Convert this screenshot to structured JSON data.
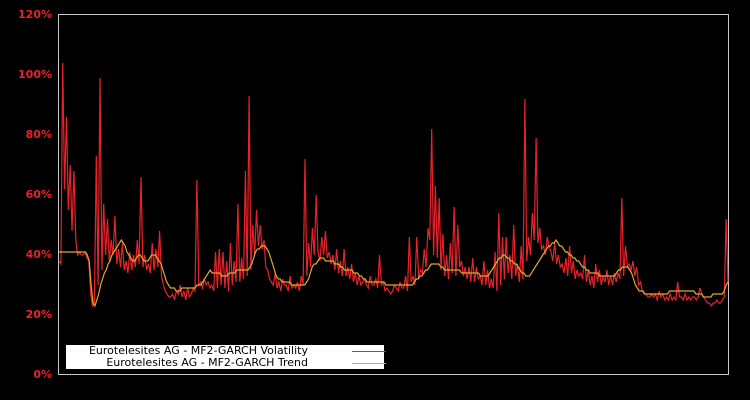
{
  "chart_data": {
    "type": "line",
    "title": "",
    "xlabel": "",
    "ylabel": "",
    "ylim": [
      0,
      120
    ],
    "y_ticks": [
      "0%",
      "20%",
      "40%",
      "60%",
      "80%",
      "100%",
      "120%"
    ],
    "y_tick_values": [
      0,
      20,
      40,
      60,
      80,
      100,
      120
    ],
    "grid": false,
    "legend_position": "lower left",
    "background": "#000000",
    "frame_color": "#c8c8c8",
    "series": [
      {
        "name": "Eurotelesites AG - MF2-GARCH Volatility",
        "color": "#e8222b",
        "values": [
          38,
          37,
          104,
          62,
          86,
          55,
          70,
          48,
          68,
          45,
          40,
          41,
          40,
          40,
          41,
          39,
          38,
          27,
          23,
          24,
          73,
          30,
          99,
          35,
          57,
          40,
          52,
          38,
          45,
          40,
          53,
          37,
          42,
          36,
          44,
          35,
          38,
          34,
          41,
          35,
          40,
          36,
          45,
          37,
          66,
          36,
          40,
          35,
          37,
          34,
          44,
          35,
          42,
          36,
          48,
          33,
          30,
          28,
          27,
          26,
          26,
          27,
          25,
          28,
          27,
          30,
          26,
          28,
          25,
          29,
          26,
          27,
          29,
          28,
          65,
          30,
          31,
          29,
          32,
          30,
          31,
          29,
          30,
          28,
          41,
          29,
          42,
          30,
          41,
          29,
          38,
          28,
          44,
          30,
          38,
          31,
          57,
          31,
          39,
          32,
          68,
          33,
          93,
          35,
          50,
          40,
          55,
          43,
          50,
          42,
          45,
          36,
          35,
          32,
          31,
          30,
          34,
          29,
          31,
          28,
          32,
          30,
          30,
          28,
          33,
          29,
          30,
          29,
          31,
          28,
          33,
          30,
          72,
          33,
          44,
          36,
          49,
          40,
          60,
          41,
          38,
          46,
          40,
          48,
          39,
          41,
          37,
          40,
          35,
          42,
          34,
          38,
          33,
          42,
          33,
          36,
          32,
          37,
          31,
          34,
          30,
          33,
          30,
          31,
          32,
          30,
          29,
          33,
          30,
          30,
          32,
          29,
          40,
          30,
          31,
          28,
          29,
          28,
          27,
          28,
          30,
          29,
          28,
          31,
          29,
          29,
          33,
          28,
          46,
          31,
          33,
          30,
          46,
          32,
          35,
          34,
          42,
          36,
          49,
          45,
          82,
          40,
          63,
          39,
          59,
          35,
          47,
          33,
          40,
          32,
          44,
          34,
          56,
          33,
          50,
          36,
          38,
          33,
          36,
          32,
          36,
          31,
          39,
          31,
          36,
          32,
          33,
          30,
          38,
          30,
          35,
          29,
          32,
          29,
          41,
          28,
          54,
          30,
          46,
          32,
          46,
          34,
          40,
          32,
          50,
          33,
          37,
          31,
          43,
          32,
          92,
          38,
          46,
          40,
          54,
          45,
          79,
          44,
          49,
          42,
          43,
          40,
          46,
          43,
          41,
          38,
          44,
          37,
          40,
          36,
          37,
          34,
          39,
          33,
          43,
          34,
          38,
          32,
          35,
          33,
          34,
          32,
          40,
          31,
          35,
          30,
          33,
          29,
          37,
          31,
          35,
          30,
          33,
          31,
          35,
          30,
          33,
          30,
          34,
          31,
          34,
          32,
          59,
          33,
          43,
          36,
          37,
          35,
          38,
          33,
          36,
          30,
          31,
          28,
          27,
          27,
          26,
          26,
          27,
          26,
          27,
          25,
          28,
          26,
          27,
          25,
          26,
          25,
          27,
          25,
          26,
          25,
          31,
          26,
          26,
          25,
          27,
          25,
          26,
          25,
          26,
          26,
          25,
          26,
          29,
          27,
          26,
          25,
          24,
          24,
          23,
          24,
          24,
          25,
          24,
          24,
          25,
          26,
          52,
          31
        ]
      },
      {
        "name": "Eurotelesites AG - MF2-GARCH Trend",
        "color": "#e0a830",
        "values": [
          41,
          41,
          41,
          41,
          41,
          41,
          41,
          41,
          41,
          41,
          41,
          41,
          41,
          41,
          41,
          40,
          38,
          30,
          24,
          23,
          25,
          27,
          30,
          32,
          34,
          35,
          37,
          38,
          40,
          41,
          42,
          43,
          44,
          45,
          44,
          43,
          41,
          40,
          39,
          38,
          38,
          39,
          40,
          40,
          39,
          38,
          38,
          38,
          39,
          40,
          40,
          40,
          39,
          38,
          37,
          35,
          33,
          31,
          30,
          29,
          29,
          29,
          28,
          28,
          28,
          29,
          29,
          29,
          29,
          29,
          29,
          29,
          29,
          30,
          30,
          30,
          31,
          32,
          33,
          34,
          35,
          34,
          34,
          34,
          34,
          34,
          33,
          33,
          33,
          33,
          34,
          34,
          34,
          34,
          35,
          35,
          35,
          35,
          35,
          35,
          35,
          36,
          37,
          39,
          41,
          42,
          42,
          43,
          43,
          43,
          42,
          41,
          39,
          37,
          35,
          33,
          32,
          32,
          31,
          31,
          31,
          31,
          31,
          30,
          30,
          30,
          30,
          30,
          30,
          30,
          30,
          31,
          32,
          34,
          36,
          37,
          37,
          38,
          39,
          39,
          39,
          38,
          38,
          38,
          38,
          38,
          37,
          37,
          37,
          36,
          36,
          35,
          35,
          35,
          35,
          35,
          34,
          34,
          34,
          33,
          33,
          32,
          32,
          31,
          31,
          31,
          31,
          31,
          31,
          31,
          31,
          31,
          31,
          30,
          30,
          30,
          30,
          30,
          30,
          30,
          30,
          30,
          30,
          30,
          30,
          30,
          30,
          30,
          31,
          32,
          32,
          33,
          33,
          34,
          35,
          35,
          36,
          37,
          37,
          37,
          37,
          37,
          36,
          36,
          35,
          35,
          35,
          35,
          35,
          35,
          35,
          35,
          35,
          34,
          34,
          34,
          34,
          34,
          34,
          34,
          34,
          34,
          34,
          33,
          33,
          33,
          33,
          33,
          34,
          35,
          36,
          37,
          38,
          39,
          39,
          40,
          40,
          39,
          39,
          38,
          38,
          37,
          37,
          36,
          35,
          34,
          34,
          33,
          33,
          33,
          34,
          35,
          36,
          37,
          38,
          39,
          40,
          41,
          42,
          43,
          43,
          44,
          44,
          45,
          44,
          43,
          43,
          42,
          41,
          41,
          40,
          40,
          39,
          39,
          38,
          38,
          37,
          36,
          36,
          35,
          35,
          34,
          34,
          34,
          34,
          34,
          33,
          33,
          33,
          33,
          33,
          33,
          33,
          33,
          33,
          34,
          35,
          35,
          36,
          36,
          36,
          36,
          35,
          34,
          32,
          30,
          29,
          28,
          28,
          28,
          27,
          27,
          27,
          27,
          27,
          27,
          27,
          27,
          27,
          27,
          27,
          27,
          27,
          28,
          28,
          28,
          28,
          28,
          28,
          28,
          28,
          28,
          28,
          28,
          28,
          28,
          28,
          27,
          27,
          27,
          27,
          26,
          26,
          26,
          26,
          26,
          27,
          27,
          27,
          27,
          27,
          27,
          28,
          30,
          31
        ]
      }
    ]
  },
  "legend": {
    "items": [
      {
        "label": "Eurotelesites AG - MF2-GARCH Volatility",
        "color": "#e8222b"
      },
      {
        "label": "Eurotelesites AG - MF2-GARCH Trend",
        "color": "#e0a830"
      }
    ]
  },
  "axis": {
    "y_labels": [
      "120%",
      "100%",
      "80%",
      "60%",
      "40%",
      "20%",
      "0%"
    ]
  }
}
